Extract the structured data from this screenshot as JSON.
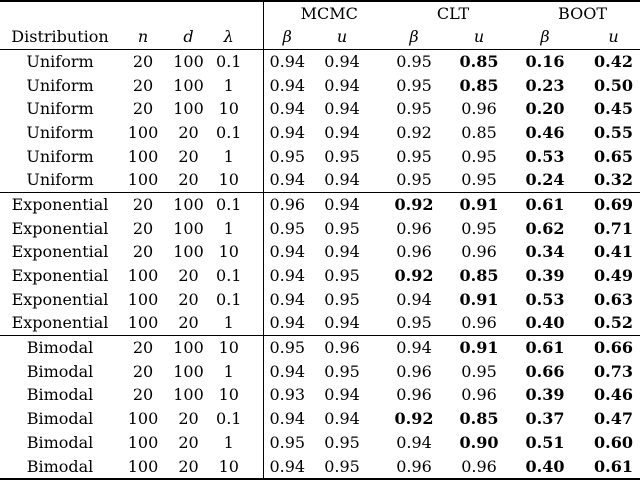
{
  "table": {
    "groups": [
      "MCMC",
      "CLT",
      "BOOT"
    ],
    "row_header_columns": [
      "Distribution",
      "n",
      "d",
      "λ"
    ],
    "sub_columns": [
      "β",
      "u"
    ],
    "sections": [
      {
        "name": "Uniform",
        "rows": [
          {
            "distribution": "Uniform",
            "n": "20",
            "d": "100",
            "lambda": "0.1",
            "values": [
              {
                "v": "0.94",
                "bold": false
              },
              {
                "v": "0.94",
                "bold": false
              },
              {
                "v": "0.95",
                "bold": false
              },
              {
                "v": "0.85",
                "bold": true
              },
              {
                "v": "0.16",
                "bold": true
              },
              {
                "v": "0.42",
                "bold": true
              }
            ]
          },
          {
            "distribution": "Uniform",
            "n": "20",
            "d": "100",
            "lambda": "1",
            "values": [
              {
                "v": "0.94",
                "bold": false
              },
              {
                "v": "0.94",
                "bold": false
              },
              {
                "v": "0.95",
                "bold": false
              },
              {
                "v": "0.85",
                "bold": true
              },
              {
                "v": "0.23",
                "bold": true
              },
              {
                "v": "0.50",
                "bold": true
              }
            ]
          },
          {
            "distribution": "Uniform",
            "n": "20",
            "d": "100",
            "lambda": "10",
            "values": [
              {
                "v": "0.94",
                "bold": false
              },
              {
                "v": "0.94",
                "bold": false
              },
              {
                "v": "0.95",
                "bold": false
              },
              {
                "v": "0.96",
                "bold": false
              },
              {
                "v": "0.20",
                "bold": true
              },
              {
                "v": "0.45",
                "bold": true
              }
            ]
          },
          {
            "distribution": "Uniform",
            "n": "100",
            "d": "20",
            "lambda": "0.1",
            "values": [
              {
                "v": "0.94",
                "bold": false
              },
              {
                "v": "0.94",
                "bold": false
              },
              {
                "v": "0.92",
                "bold": false
              },
              {
                "v": "0.85",
                "bold": false
              },
              {
                "v": "0.46",
                "bold": true
              },
              {
                "v": "0.55",
                "bold": true
              }
            ]
          },
          {
            "distribution": "Uniform",
            "n": "100",
            "d": "20",
            "lambda": "1",
            "values": [
              {
                "v": "0.95",
                "bold": false
              },
              {
                "v": "0.95",
                "bold": false
              },
              {
                "v": "0.95",
                "bold": false
              },
              {
                "v": "0.95",
                "bold": false
              },
              {
                "v": "0.53",
                "bold": true
              },
              {
                "v": "0.65",
                "bold": true
              }
            ]
          },
          {
            "distribution": "Uniform",
            "n": "100",
            "d": "20",
            "lambda": "10",
            "values": [
              {
                "v": "0.94",
                "bold": false
              },
              {
                "v": "0.94",
                "bold": false
              },
              {
                "v": "0.95",
                "bold": false
              },
              {
                "v": "0.95",
                "bold": false
              },
              {
                "v": "0.24",
                "bold": true
              },
              {
                "v": "0.32",
                "bold": true
              }
            ]
          }
        ]
      },
      {
        "name": "Exponential",
        "rows": [
          {
            "distribution": "Exponential",
            "n": "20",
            "d": "100",
            "lambda": "0.1",
            "values": [
              {
                "v": "0.96",
                "bold": false
              },
              {
                "v": "0.94",
                "bold": false
              },
              {
                "v": "0.92",
                "bold": true
              },
              {
                "v": "0.91",
                "bold": true
              },
              {
                "v": "0.61",
                "bold": true
              },
              {
                "v": "0.69",
                "bold": true
              }
            ]
          },
          {
            "distribution": "Exponential",
            "n": "20",
            "d": "100",
            "lambda": "1",
            "values": [
              {
                "v": "0.95",
                "bold": false
              },
              {
                "v": "0.95",
                "bold": false
              },
              {
                "v": "0.96",
                "bold": false
              },
              {
                "v": "0.95",
                "bold": false
              },
              {
                "v": "0.62",
                "bold": true
              },
              {
                "v": "0.71",
                "bold": true
              }
            ]
          },
          {
            "distribution": "Exponential",
            "n": "20",
            "d": "100",
            "lambda": "10",
            "values": [
              {
                "v": "0.94",
                "bold": false
              },
              {
                "v": "0.94",
                "bold": false
              },
              {
                "v": "0.96",
                "bold": false
              },
              {
                "v": "0.96",
                "bold": false
              },
              {
                "v": "0.34",
                "bold": true
              },
              {
                "v": "0.41",
                "bold": true
              }
            ]
          },
          {
            "distribution": "Exponential",
            "n": "100",
            "d": "20",
            "lambda": "0.1",
            "values": [
              {
                "v": "0.94",
                "bold": false
              },
              {
                "v": "0.95",
                "bold": false
              },
              {
                "v": "0.92",
                "bold": true
              },
              {
                "v": "0.85",
                "bold": true
              },
              {
                "v": "0.39",
                "bold": true
              },
              {
                "v": "0.49",
                "bold": true
              }
            ]
          },
          {
            "distribution": "Exponential",
            "n": "100",
            "d": "20",
            "lambda": "0.1",
            "values": [
              {
                "v": "0.94",
                "bold": false
              },
              {
                "v": "0.95",
                "bold": false
              },
              {
                "v": "0.94",
                "bold": false
              },
              {
                "v": "0.91",
                "bold": true
              },
              {
                "v": "0.53",
                "bold": true
              },
              {
                "v": "0.63",
                "bold": true
              }
            ]
          },
          {
            "distribution": "Exponential",
            "n": "100",
            "d": "20",
            "lambda": "1",
            "values": [
              {
                "v": "0.94",
                "bold": false
              },
              {
                "v": "0.94",
                "bold": false
              },
              {
                "v": "0.95",
                "bold": false
              },
              {
                "v": "0.96",
                "bold": false
              },
              {
                "v": "0.40",
                "bold": true
              },
              {
                "v": "0.52",
                "bold": true
              }
            ]
          }
        ]
      },
      {
        "name": "Bimodal",
        "rows": [
          {
            "distribution": "Bimodal",
            "n": "20",
            "d": "100",
            "lambda": "10",
            "values": [
              {
                "v": "0.95",
                "bold": false
              },
              {
                "v": "0.96",
                "bold": false
              },
              {
                "v": "0.94",
                "bold": false
              },
              {
                "v": "0.91",
                "bold": true
              },
              {
                "v": "0.61",
                "bold": true
              },
              {
                "v": "0.66",
                "bold": true
              }
            ]
          },
          {
            "distribution": "Bimodal",
            "n": "20",
            "d": "100",
            "lambda": "1",
            "values": [
              {
                "v": "0.94",
                "bold": false
              },
              {
                "v": "0.95",
                "bold": false
              },
              {
                "v": "0.96",
                "bold": false
              },
              {
                "v": "0.95",
                "bold": false
              },
              {
                "v": "0.66",
                "bold": true
              },
              {
                "v": "0.73",
                "bold": true
              }
            ]
          },
          {
            "distribution": "Bimodal",
            "n": "20",
            "d": "100",
            "lambda": "10",
            "values": [
              {
                "v": "0.93",
                "bold": false
              },
              {
                "v": "0.94",
                "bold": false
              },
              {
                "v": "0.96",
                "bold": false
              },
              {
                "v": "0.96",
                "bold": false
              },
              {
                "v": "0.39",
                "bold": true
              },
              {
                "v": "0.46",
                "bold": true
              }
            ]
          },
          {
            "distribution": "Bimodal",
            "n": "100",
            "d": "20",
            "lambda": "0.1",
            "values": [
              {
                "v": "0.94",
                "bold": false
              },
              {
                "v": "0.94",
                "bold": false
              },
              {
                "v": "0.92",
                "bold": true
              },
              {
                "v": "0.85",
                "bold": true
              },
              {
                "v": "0.37",
                "bold": true
              },
              {
                "v": "0.47",
                "bold": true
              }
            ]
          },
          {
            "distribution": "Bimodal",
            "n": "100",
            "d": "20",
            "lambda": "1",
            "values": [
              {
                "v": "0.95",
                "bold": false
              },
              {
                "v": "0.95",
                "bold": false
              },
              {
                "v": "0.94",
                "bold": false
              },
              {
                "v": "0.90",
                "bold": true
              },
              {
                "v": "0.51",
                "bold": true
              },
              {
                "v": "0.60",
                "bold": true
              }
            ]
          },
          {
            "distribution": "Bimodal",
            "n": "100",
            "d": "20",
            "lambda": "10",
            "values": [
              {
                "v": "0.94",
                "bold": false
              },
              {
                "v": "0.95",
                "bold": false
              },
              {
                "v": "0.96",
                "bold": false
              },
              {
                "v": "0.96",
                "bold": false
              },
              {
                "v": "0.40",
                "bold": true
              },
              {
                "v": "0.61",
                "bold": true
              }
            ]
          }
        ]
      }
    ]
  }
}
